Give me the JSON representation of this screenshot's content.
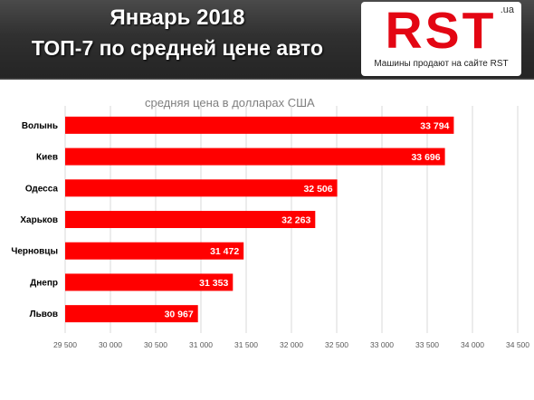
{
  "header": {
    "title_line1": "Январь 2018",
    "title_line2": "ТОП-7 по средней цене авто"
  },
  "logo": {
    "brand": "RST",
    "domain": ".ua",
    "tagline": "Машины продают на сайте RST"
  },
  "colors": {
    "bar": "#ff0000",
    "header_bg": "#2e2e2e",
    "brand_red": "#e30613",
    "gridline": "#d9d9d9"
  },
  "chart_data": {
    "type": "bar",
    "orientation": "horizontal",
    "title": "средняя цена в долларах США",
    "categories": [
      "Волынь",
      "Киев",
      "Одесса",
      "Харьков",
      "Черновцы",
      "Днепр",
      "Львов"
    ],
    "values": [
      33794,
      33696,
      32506,
      32263,
      31472,
      31353,
      30967
    ],
    "value_labels": [
      "33 794",
      "33 696",
      "32 506",
      "32 263",
      "31 472",
      "31 353",
      "30 967"
    ],
    "xlim": [
      29500,
      34500
    ],
    "ticks": [
      29500,
      30000,
      30500,
      31000,
      31500,
      32000,
      32500,
      33000,
      33500,
      34000,
      34500
    ],
    "tick_labels": [
      "29 500",
      "30 000",
      "30 500",
      "31 000",
      "31 500",
      "32 000",
      "32 500",
      "33 000",
      "33 500",
      "34 000",
      "34 500"
    ],
    "grid": true,
    "legend": "none"
  }
}
